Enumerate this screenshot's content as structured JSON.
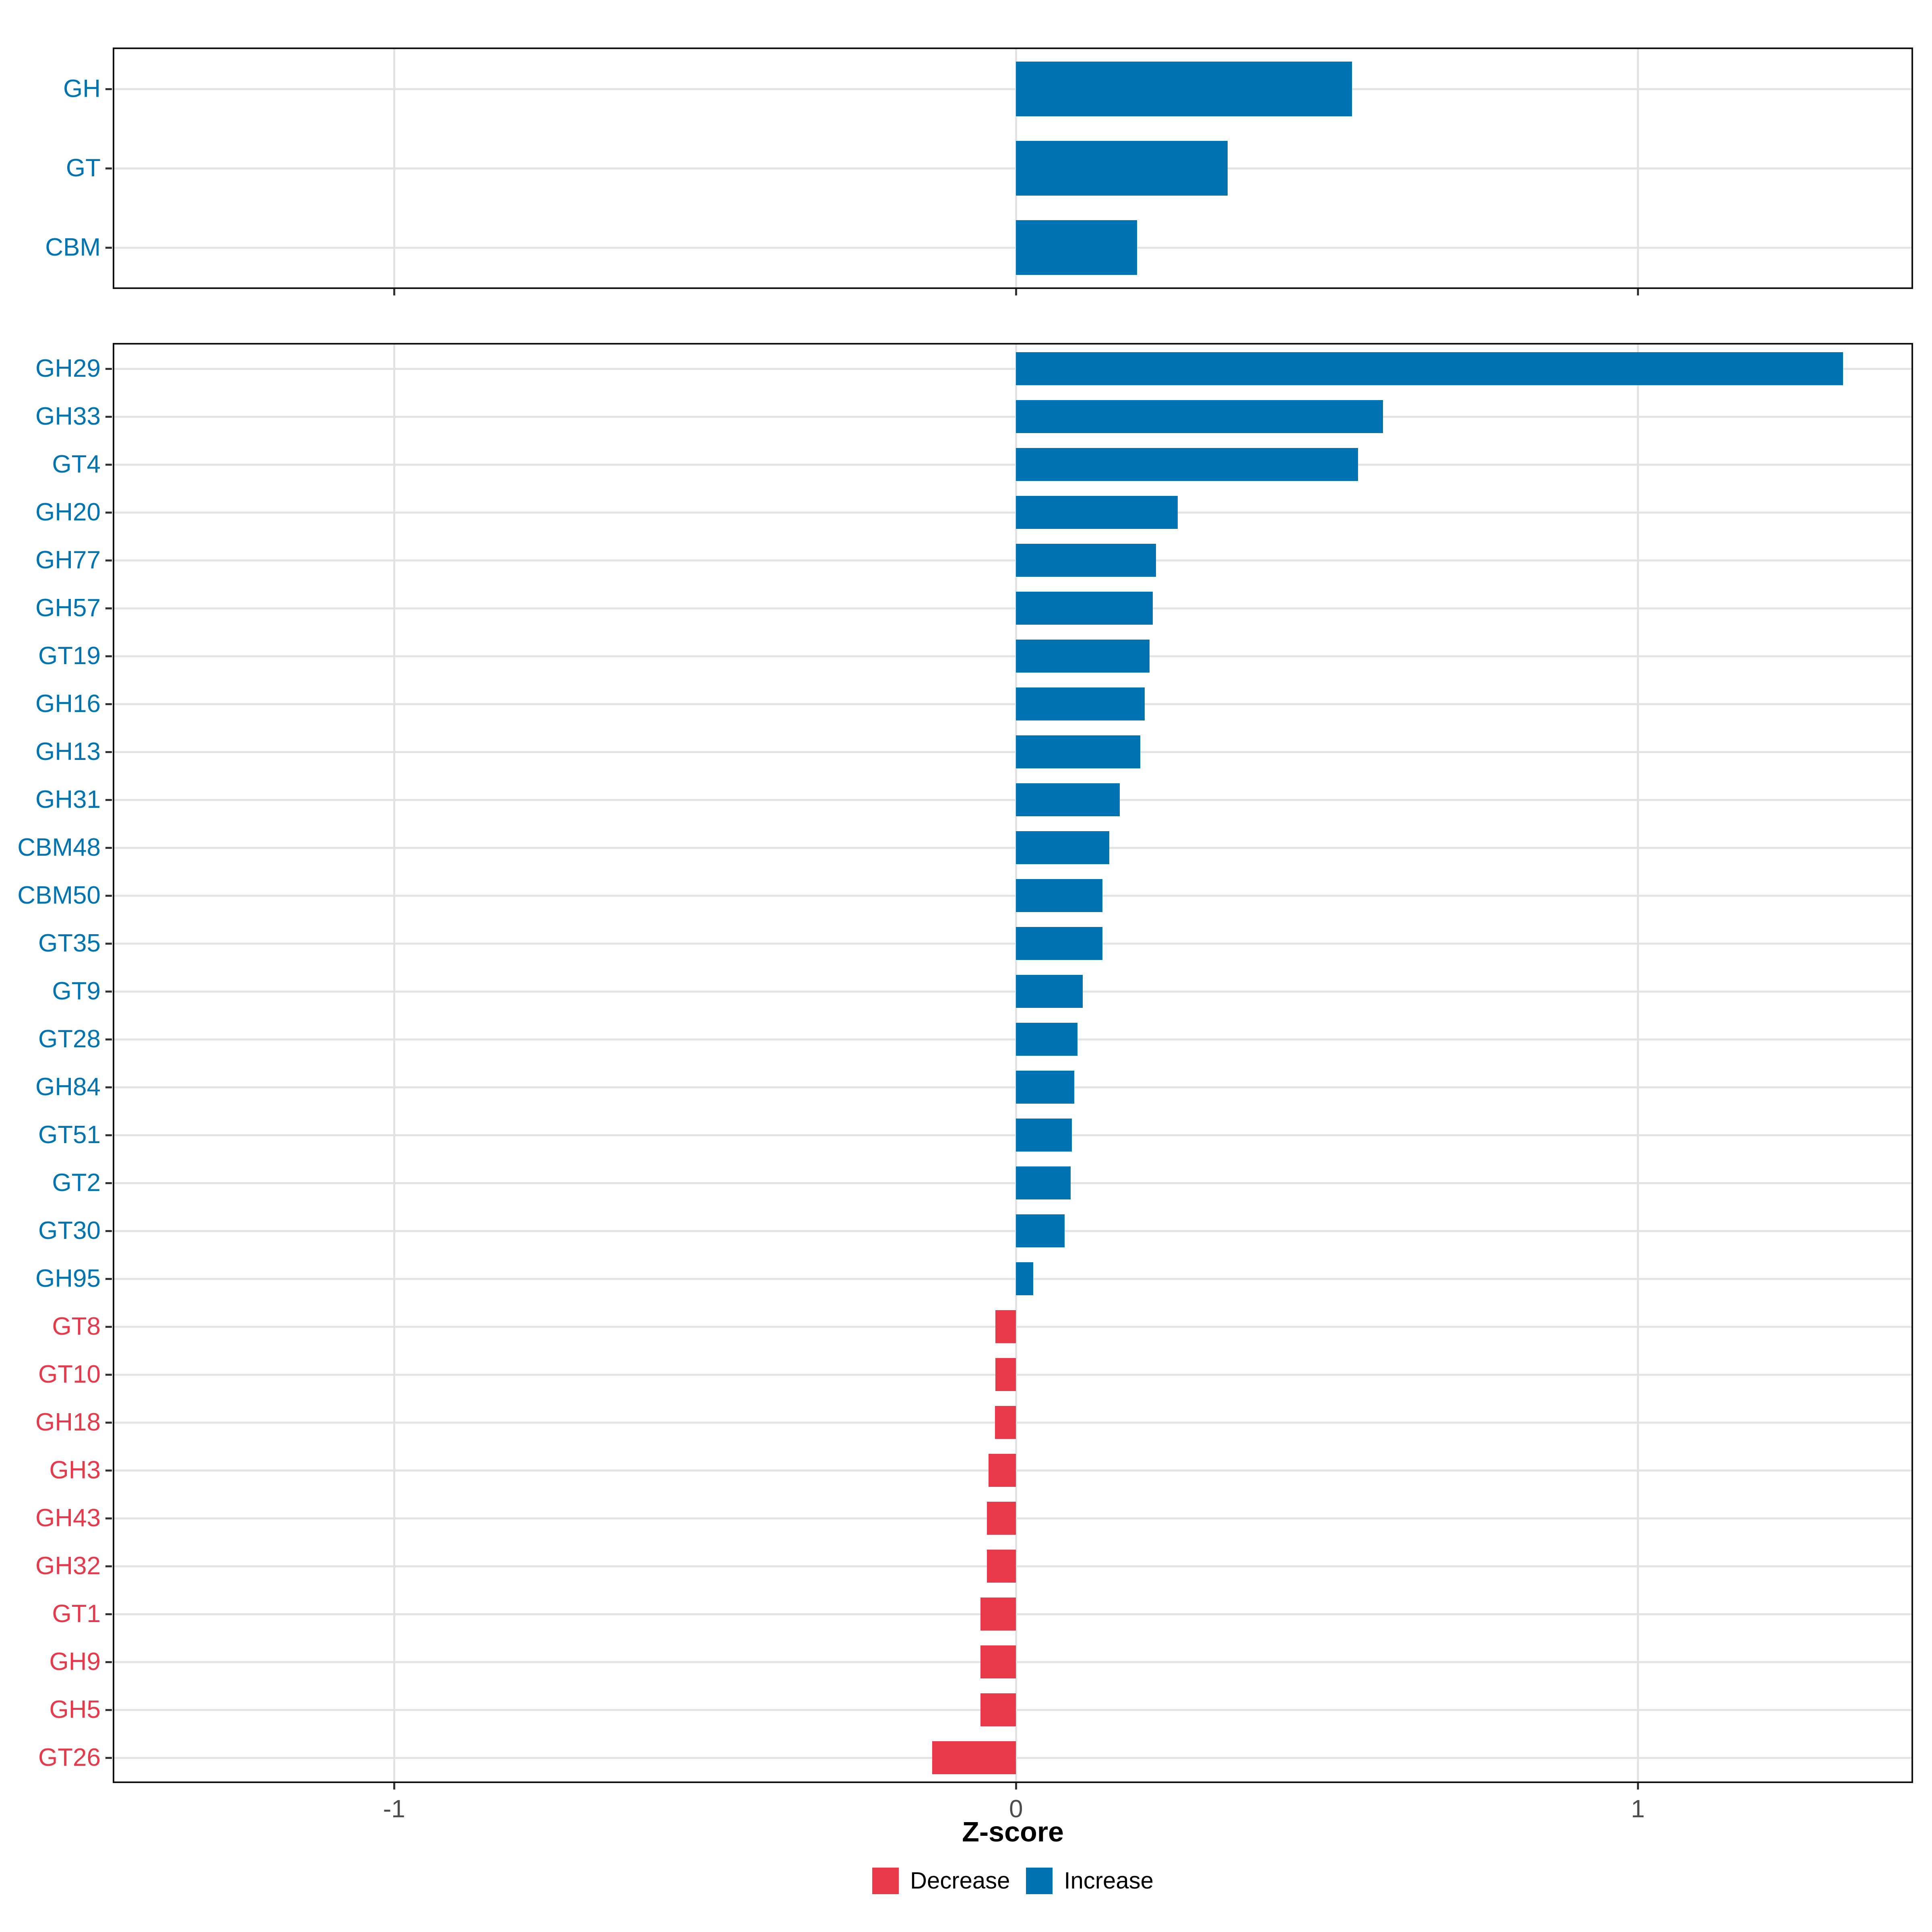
{
  "chart_data": {
    "type": "bar",
    "orientation": "horizontal",
    "title": "",
    "xlabel": "Z-score",
    "ylabel": "",
    "xlim": [
      -1.45,
      1.44
    ],
    "x_ticks": [
      {
        "label": "-1",
        "value": -1
      },
      {
        "label": "0",
        "value": 0
      },
      {
        "label": "1",
        "value": 1
      }
    ],
    "grid": "major-vertical-and-row-lines",
    "legend_position": "bottom-center",
    "colors": {
      "increase": "#0074B3",
      "decrease": "#E8394A",
      "gridline": "#e3e3e3",
      "axis_text": "#4d4d4d",
      "panel_border": "#111111"
    },
    "panels": [
      {
        "name": "family-summary",
        "items": [
          {
            "label": "GH",
            "value": 0.54,
            "direction": "increase"
          },
          {
            "label": "GT",
            "value": 0.34,
            "direction": "increase"
          },
          {
            "label": "CBM",
            "value": 0.195,
            "direction": "increase"
          }
        ]
      },
      {
        "name": "subfamily-detail",
        "items": [
          {
            "label": "GH29",
            "value": 1.33,
            "direction": "increase"
          },
          {
            "label": "GH33",
            "value": 0.59,
            "direction": "increase"
          },
          {
            "label": "GT4",
            "value": 0.55,
            "direction": "increase"
          },
          {
            "label": "GH20",
            "value": 0.26,
            "direction": "increase"
          },
          {
            "label": "GH77",
            "value": 0.225,
            "direction": "increase"
          },
          {
            "label": "GH57",
            "value": 0.22,
            "direction": "increase"
          },
          {
            "label": "GT19",
            "value": 0.215,
            "direction": "increase"
          },
          {
            "label": "GH16",
            "value": 0.207,
            "direction": "increase"
          },
          {
            "label": "GH13",
            "value": 0.2,
            "direction": "increase"
          },
          {
            "label": "GH31",
            "value": 0.167,
            "direction": "increase"
          },
          {
            "label": "CBM48",
            "value": 0.15,
            "direction": "increase"
          },
          {
            "label": "CBM50",
            "value": 0.139,
            "direction": "increase"
          },
          {
            "label": "GT35",
            "value": 0.139,
            "direction": "increase"
          },
          {
            "label": "GT9",
            "value": 0.107,
            "direction": "increase"
          },
          {
            "label": "GT28",
            "value": 0.099,
            "direction": "increase"
          },
          {
            "label": "GH84",
            "value": 0.094,
            "direction": "increase"
          },
          {
            "label": "GT51",
            "value": 0.09,
            "direction": "increase"
          },
          {
            "label": "GT2",
            "value": 0.088,
            "direction": "increase"
          },
          {
            "label": "GT30",
            "value": 0.078,
            "direction": "increase"
          },
          {
            "label": "GH95",
            "value": 0.028,
            "direction": "increase"
          },
          {
            "label": "GT8",
            "value": -0.033,
            "direction": "decrease"
          },
          {
            "label": "GT10",
            "value": -0.033,
            "direction": "decrease"
          },
          {
            "label": "GH18",
            "value": -0.034,
            "direction": "decrease"
          },
          {
            "label": "GH3",
            "value": -0.044,
            "direction": "decrease"
          },
          {
            "label": "GH43",
            "value": -0.047,
            "direction": "decrease"
          },
          {
            "label": "GH32",
            "value": -0.047,
            "direction": "decrease"
          },
          {
            "label": "GT1",
            "value": -0.057,
            "direction": "decrease"
          },
          {
            "label": "GH9",
            "value": -0.057,
            "direction": "decrease"
          },
          {
            "label": "GH5",
            "value": -0.057,
            "direction": "decrease"
          },
          {
            "label": "GT26",
            "value": -0.135,
            "direction": "decrease"
          }
        ]
      }
    ]
  },
  "legend": {
    "items": [
      {
        "label": "Decrease",
        "color": "#E8394A"
      },
      {
        "label": "Increase",
        "color": "#0074B3"
      }
    ]
  }
}
